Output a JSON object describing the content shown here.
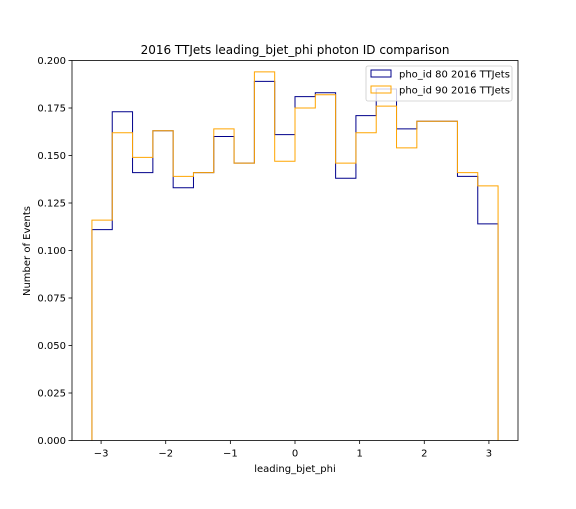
{
  "chart_data": {
    "type": "histogram",
    "title": "2016 TTJets leading_bjet_phi photon ID comparison",
    "xlabel": "leading_bjet_phi",
    "ylabel": "Number of Events",
    "xlim": [
      -3.45,
      3.45
    ],
    "ylim": [
      0.0,
      0.2
    ],
    "xticks": [
      -3,
      -2,
      -1,
      0,
      1,
      2,
      3
    ],
    "xtick_labels": [
      "−3",
      "−2",
      "−1",
      "0",
      "1",
      "2",
      "3"
    ],
    "yticks": [
      0.0,
      0.025,
      0.05,
      0.075,
      0.1,
      0.125,
      0.15,
      0.175,
      0.2
    ],
    "ytick_labels": [
      "0.000",
      "0.025",
      "0.050",
      "0.075",
      "0.100",
      "0.125",
      "0.150",
      "0.175",
      "0.200"
    ],
    "bin_edges": [
      -3.1416,
      -2.8274,
      -2.5133,
      -2.1991,
      -1.885,
      -1.5708,
      -1.2566,
      -0.9425,
      -0.6283,
      -0.3142,
      0.0,
      0.3142,
      0.6283,
      0.9425,
      1.2566,
      1.5708,
      1.885,
      2.1991,
      2.5133,
      2.8274,
      3.1416
    ],
    "legend_position": "upper right",
    "series": [
      {
        "name": "pho_id 80 2016 TTJets",
        "color": "#00008b",
        "values": [
          0.111,
          0.173,
          0.141,
          0.163,
          0.133,
          0.141,
          0.16,
          0.146,
          0.189,
          0.161,
          0.181,
          0.183,
          0.138,
          0.171,
          0.185,
          0.164,
          0.168,
          0.168,
          0.139,
          0.114
        ]
      },
      {
        "name": "pho_id 90 2016 TTJets",
        "color": "#ffa500",
        "values": [
          0.116,
          0.162,
          0.149,
          0.163,
          0.139,
          0.141,
          0.164,
          0.146,
          0.194,
          0.147,
          0.175,
          0.182,
          0.146,
          0.162,
          0.176,
          0.154,
          0.168,
          0.168,
          0.141,
          0.134
        ]
      }
    ]
  }
}
